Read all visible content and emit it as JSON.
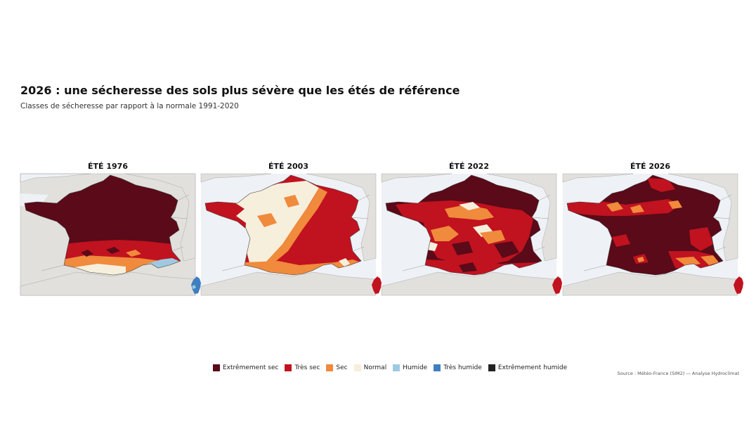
{
  "title": "2026 : une sécheresse des sols plus sévère que les étés de référence",
  "subtitle": "Classes de sécheresse par rapport à la normale 1991-2020",
  "colors": {
    "sea": "#eef1f5",
    "land": "#e1e0dc",
    "border": "#9a9a9a"
  },
  "classes": [
    {
      "id": "extremement-sec",
      "label": "Extrêmement sec",
      "color": "#5a0a18"
    },
    {
      "id": "tres-sec",
      "label": "Très sec",
      "color": "#c1121f"
    },
    {
      "id": "sec",
      "label": "Sec",
      "color": "#f08a3c"
    },
    {
      "id": "normal",
      "label": "Normal",
      "color": "#f6efdc"
    },
    {
      "id": "humide",
      "label": "Humide",
      "color": "#9ecae1"
    },
    {
      "id": "tres-humide",
      "label": "Très humide",
      "color": "#3f7fc0"
    },
    {
      "id": "extremement-humide",
      "label": "Extrêmement humide",
      "color": "#222222"
    }
  ],
  "panels": [
    {
      "id": "ete-1976",
      "title": "ÉTÉ 1976"
    },
    {
      "id": "ete-2003",
      "title": "ÉTÉ 2003"
    },
    {
      "id": "ete-2022",
      "title": "ÉTÉ 2022"
    },
    {
      "id": "ete-2026",
      "title": "ÉTÉ 2026"
    }
  ],
  "source": "Source : Météo-France (SIM2) — Analyse Hydroclimat"
}
